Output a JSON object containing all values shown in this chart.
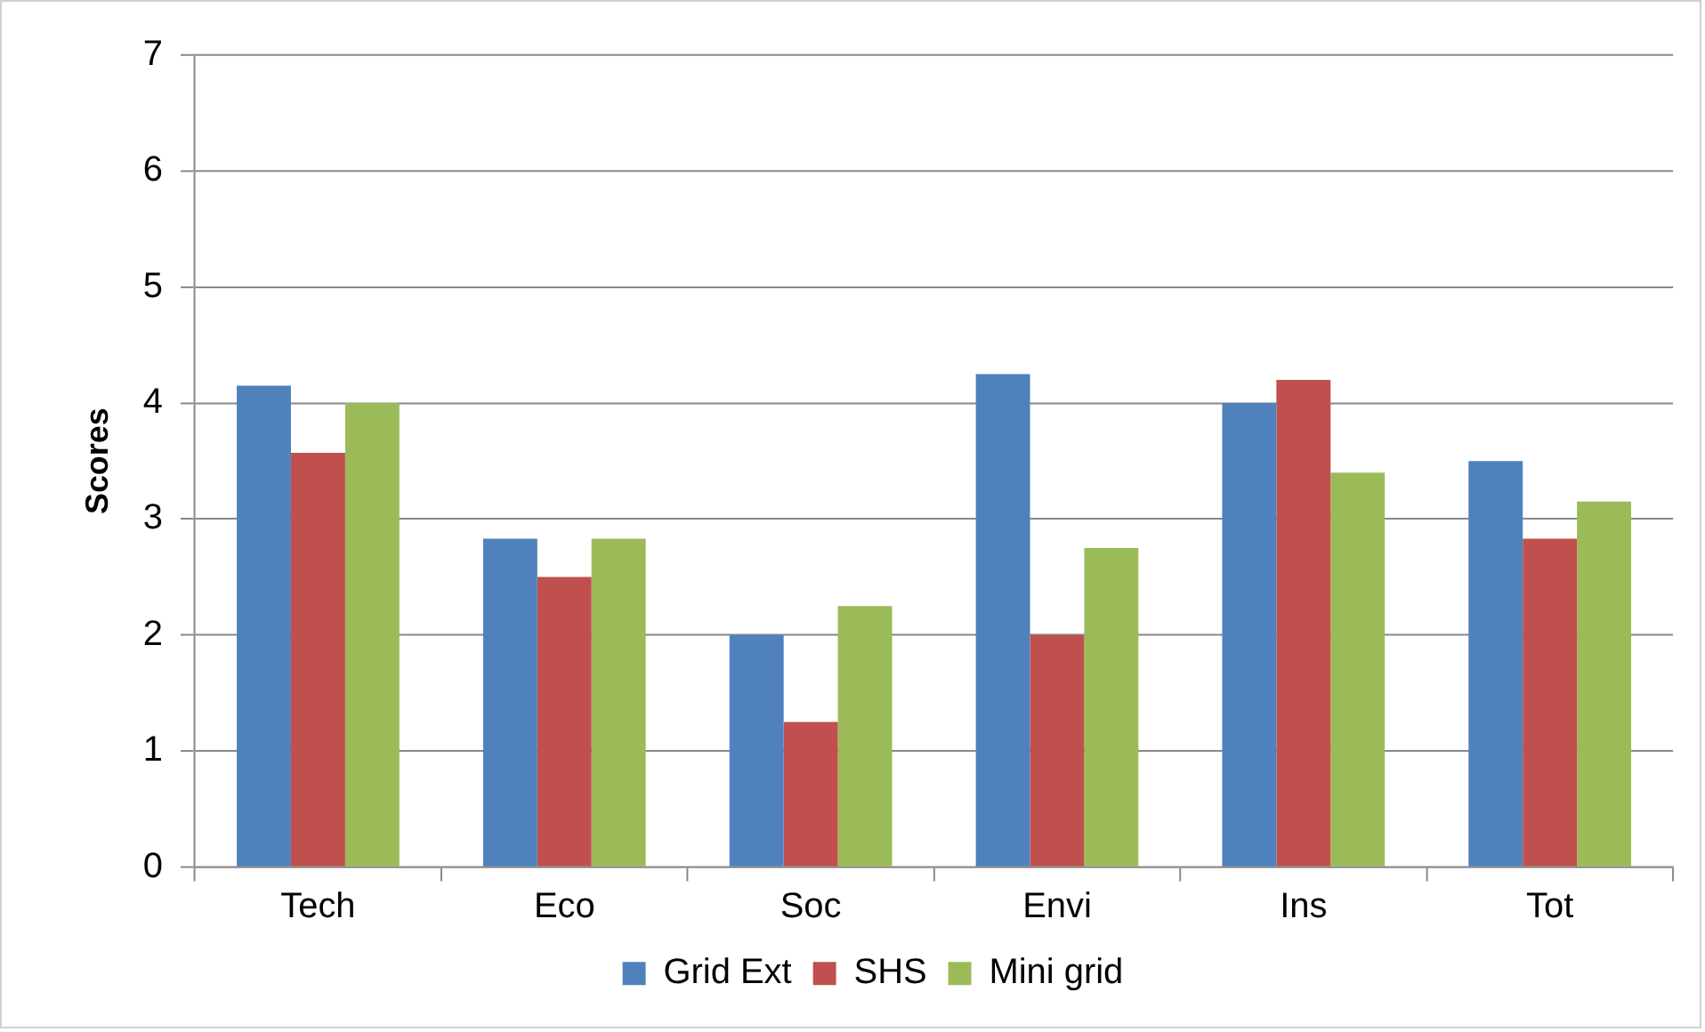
{
  "chart_data": {
    "type": "bar",
    "ylabel": "Scores",
    "categories": [
      "Tech",
      "Eco",
      "Soc",
      "Envi",
      "Ins",
      "Tot"
    ],
    "series": [
      {
        "name": "Grid Ext",
        "color": "#4f81bd",
        "values": [
          4.15,
          2.83,
          2.0,
          4.25,
          4.0,
          3.5
        ]
      },
      {
        "name": "SHS",
        "color": "#c0504d",
        "values": [
          3.57,
          2.5,
          1.25,
          2.0,
          4.2,
          2.83
        ]
      },
      {
        "name": "Mini grid",
        "color": "#9bbb59",
        "values": [
          4.0,
          2.83,
          2.25,
          2.75,
          3.4,
          3.15
        ]
      }
    ],
    "ylim": [
      0,
      7
    ],
    "yticks": [
      0,
      1,
      2,
      3,
      4,
      5,
      6,
      7
    ],
    "grid": "y",
    "legend": "bottom"
  }
}
